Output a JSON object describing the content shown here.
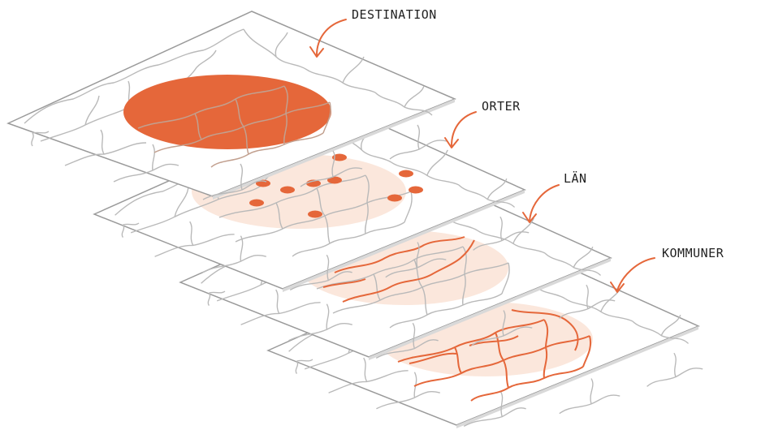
{
  "layers": [
    {
      "label": "DESTINATION"
    },
    {
      "label": "ORTER"
    },
    {
      "label": "LÄN"
    },
    {
      "label": "KOMMUNER"
    }
  ],
  "colors": {
    "sheet_fill": "#ffffff",
    "sheet_edge": "#9a9a9a",
    "sheet_shadow": "#d9d9d9",
    "region_line": "#b9b9b9",
    "accent": "#e5673a",
    "accent_soft": "#fbe7dc",
    "arrow": "#e5673a",
    "text": "#222222"
  }
}
